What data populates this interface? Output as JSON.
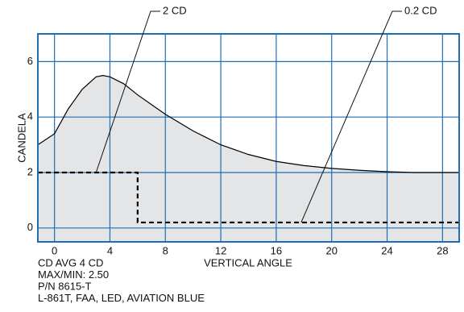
{
  "chart_data": {
    "type": "line",
    "ylabel": "CANDELA",
    "xlabel": "VERTICAL ANGLE",
    "xlim": [
      -1.2,
      29.2
    ],
    "ylim": [
      -0.5,
      7
    ],
    "xticks": [
      0,
      4,
      8,
      12,
      16,
      20,
      24,
      28
    ],
    "yticks": [
      0,
      2,
      4,
      6
    ],
    "grid": true,
    "grid_color": "#1f6eb5",
    "series": [
      {
        "x": [
          -1.2,
          0,
          1,
          2,
          3,
          3.5,
          4,
          5,
          6,
          8,
          10,
          12,
          14,
          16,
          18,
          20,
          22,
          24,
          26,
          28,
          29.2
        ],
        "values": [
          3.0,
          3.4,
          4.3,
          5.0,
          5.45,
          5.5,
          5.45,
          5.2,
          4.8,
          4.1,
          3.5,
          3.0,
          2.65,
          2.4,
          2.25,
          2.15,
          2.08,
          2.03,
          2.0,
          2.0,
          2.0
        ],
        "color": "#000000",
        "fill": "#e4e5e7",
        "style": "solid"
      },
      {
        "x": [
          -1.2,
          6,
          6,
          29.2
        ],
        "values": [
          2,
          2,
          0.2,
          0.2
        ],
        "color": "#000000",
        "style": "dashed"
      }
    ],
    "annotations": [
      {
        "text": "2 CD",
        "x": 3.0,
        "y": 2.0
      },
      {
        "text": "0.2 CD",
        "x": 17.8,
        "y": 0.2
      }
    ],
    "notes": [
      "CD AVG 4 CD",
      "MAX/MIN: 2.50",
      "P/N 8615-T",
      "L-861T, FAA, LED, AVIATION BLUE"
    ]
  }
}
